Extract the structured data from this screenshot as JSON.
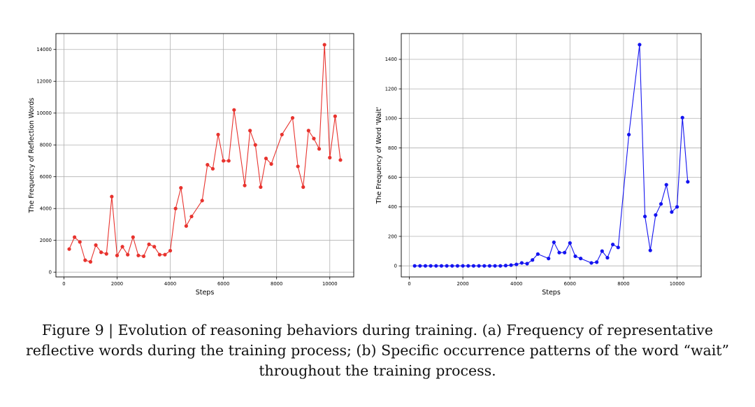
{
  "chart_data": [
    {
      "type": "line",
      "xlabel": "Steps",
      "ylabel": "The Frequency of Reflection Words",
      "xlim": [
        -300,
        10900
      ],
      "ylim": [
        -300,
        15000
      ],
      "xticks": [
        0,
        2000,
        4000,
        6000,
        8000,
        10000
      ],
      "yticks": [
        0,
        2000,
        4000,
        6000,
        8000,
        10000,
        12000,
        14000
      ],
      "grid": true,
      "color": "#e8332e",
      "series": [
        {
          "x": [
            200,
            400,
            600,
            800,
            1000,
            1200,
            1400,
            1600,
            1800,
            2000,
            2200,
            2400,
            2600,
            2800,
            3000,
            3200,
            3400,
            3600,
            3800,
            4000,
            4200,
            4400,
            4600,
            4800,
            5200,
            5400,
            5600,
            5800,
            6000,
            6200,
            6400,
            6800,
            7000,
            7200,
            7400,
            7600,
            7800,
            8200,
            8600,
            8800,
            9000,
            9200,
            9400,
            9600,
            9800,
            10000,
            10200,
            10400
          ],
          "y": [
            1450,
            2200,
            1900,
            750,
            650,
            1700,
            1250,
            1150,
            4750,
            1050,
            1600,
            1100,
            2200,
            1050,
            1000,
            1750,
            1600,
            1100,
            1100,
            1350,
            4000,
            5300,
            2900,
            3500,
            4500,
            6750,
            6500,
            8650,
            7000,
            7000,
            10200,
            5450,
            8900,
            8000,
            5350,
            7150,
            6800,
            8650,
            9700,
            6650,
            5350,
            8900,
            8400,
            7750,
            14300,
            7200,
            9800,
            7050
          ]
        }
      ]
    },
    {
      "type": "line",
      "xlabel": "Steps",
      "ylabel": "The Frequency of Word 'Wait'",
      "xlim": [
        -300,
        10900
      ],
      "ylim": [
        -75,
        1575
      ],
      "xticks": [
        0,
        2000,
        4000,
        6000,
        8000,
        10000
      ],
      "yticks": [
        0,
        200,
        400,
        600,
        800,
        1000,
        1200,
        1400
      ],
      "grid": true,
      "color": "#1414f0",
      "series": [
        {
          "x": [
            200,
            400,
            600,
            800,
            1000,
            1200,
            1400,
            1600,
            1800,
            2000,
            2200,
            2400,
            2600,
            2800,
            3000,
            3200,
            3400,
            3600,
            3800,
            4000,
            4200,
            4400,
            4600,
            4800,
            5200,
            5400,
            5600,
            5800,
            6000,
            6200,
            6400,
            6800,
            7000,
            7200,
            7400,
            7600,
            7800,
            8200,
            8600,
            8800,
            9000,
            9200,
            9400,
            9600,
            9800,
            10000,
            10200,
            10400
          ],
          "y": [
            0,
            0,
            0,
            0,
            0,
            0,
            0,
            0,
            0,
            0,
            0,
            0,
            0,
            0,
            0,
            0,
            0,
            2,
            5,
            10,
            20,
            15,
            40,
            80,
            50,
            160,
            90,
            90,
            155,
            65,
            50,
            20,
            25,
            100,
            55,
            145,
            125,
            890,
            1500,
            335,
            105,
            345,
            420,
            550,
            365,
            400,
            1005,
            570
          ]
        }
      ]
    }
  ],
  "caption": {
    "line1": "Figure 9 | Evolution of reasoning behaviors during training. (a) Frequency of representative",
    "line2": "reflective words during the training process; (b) Specific occurrence patterns of the word “wait”",
    "line3": "throughout the training process."
  }
}
